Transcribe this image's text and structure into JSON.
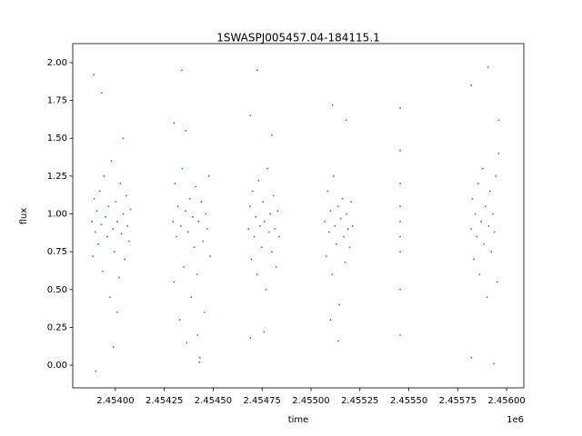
{
  "chart_data": {
    "type": "scatter",
    "title": "1SWASPJ005457.04-184115.1",
    "x_label": "time",
    "y_label": "flux",
    "x_offset_label": "1e6",
    "color": "#1f77b4",
    "xlim": [
      2453782,
      2456088
    ],
    "ylim": [
      -0.15,
      2.126
    ],
    "xticks": [
      {
        "value": 2454000,
        "label": "2.45400"
      },
      {
        "value": 2454250,
        "label": "2.45425"
      },
      {
        "value": 2454500,
        "label": "2.45450"
      },
      {
        "value": 2454750,
        "label": "2.45475"
      },
      {
        "value": 2455000,
        "label": "2.45500"
      },
      {
        "value": 2455250,
        "label": "2.45525"
      },
      {
        "value": 2455500,
        "label": "2.45550"
      },
      {
        "value": 2455750,
        "label": "2.45575"
      },
      {
        "value": 2456000,
        "label": "2.45600"
      }
    ],
    "yticks": [
      {
        "value": 0,
        "label": "0.00"
      },
      {
        "value": 0.25,
        "label": "0.25"
      },
      {
        "value": 0.5,
        "label": "0.50"
      },
      {
        "value": 0.75,
        "label": "0.75"
      },
      {
        "value": 1,
        "label": "1.00"
      },
      {
        "value": 1.25,
        "label": "1.25"
      },
      {
        "value": 1.5,
        "label": "1.50"
      },
      {
        "value": 1.75,
        "label": "1.75"
      },
      {
        "value": 2,
        "label": "2.00"
      }
    ],
    "x": [
      2453880,
      2453885,
      2453892,
      2453898,
      2453905,
      2453912,
      2453920,
      2453928,
      2453935,
      2453942,
      2453950,
      2453958,
      2453965,
      2453972,
      2453980,
      2453988,
      2453995,
      2454002,
      2454010,
      2454018,
      2454025,
      2454032,
      2454040,
      2454048,
      2454055,
      2454062,
      2454070,
      2454078,
      2453890,
      2453900,
      2453990,
      2454040,
      2454010,
      2453930,
      2454295,
      2454300,
      2454305,
      2454312,
      2454320,
      2454328,
      2454335,
      2454342,
      2454350,
      2454358,
      2454365,
      2454372,
      2454380,
      2454388,
      2454395,
      2454402,
      2454410,
      2454418,
      2454425,
      2454432,
      2454440,
      2454448,
      2454455,
      2454462,
      2454470,
      2454478,
      2454485,
      2454340,
      2454300,
      2454430,
      2454360,
      2454420,
      2454680,
      2454688,
      2454695,
      2454702,
      2454710,
      2454718,
      2454725,
      2454732,
      2454740,
      2454748,
      2454755,
      2454762,
      2454770,
      2454778,
      2454785,
      2454792,
      2454800,
      2454808,
      2454815,
      2454822,
      2454830,
      2454838,
      2454690,
      2454725,
      2454760,
      2454800,
      2454690,
      2455070,
      2455078,
      2455085,
      2455092,
      2455100,
      2455108,
      2455115,
      2455122,
      2455130,
      2455138,
      2455145,
      2455152,
      2455160,
      2455168,
      2455175,
      2455182,
      2455190,
      2455198,
      2455205,
      2455212,
      2455110,
      2455140,
      2455180,
      2455100,
      2455456,
      2455456,
      2455456,
      2455456,
      2455456,
      2455456,
      2455456,
      2455456,
      2455456,
      2455818,
      2455825,
      2455832,
      2455840,
      2455848,
      2455855,
      2455862,
      2455870,
      2455878,
      2455885,
      2455892,
      2455900,
      2455908,
      2455915,
      2455922,
      2455930,
      2455938,
      2455945,
      2455952,
      2455960,
      2455820,
      2455820,
      2455905,
      2455935,
      2455960
    ],
    "values": [
      0.95,
      0.72,
      1.1,
      0.88,
      1.02,
      0.8,
      1.15,
      0.93,
      0.62,
      1.25,
      0.98,
      0.85,
      1.05,
      0.45,
      1.35,
      0.9,
      0.75,
      1.08,
      0.95,
      0.58,
      1.2,
      0.87,
      1.0,
      0.7,
      1.12,
      0.92,
      0.82,
      1.03,
      1.92,
      -0.04,
      0.12,
      1.5,
      0.35,
      1.8,
      0.95,
      0.55,
      1.2,
      0.85,
      1.05,
      0.3,
      0.92,
      1.3,
      0.65,
      1.02,
      0.15,
      0.88,
      1.1,
      0.45,
      0.98,
      0.78,
      1.18,
      0.6,
      0.95,
      0.05,
      1.08,
      0.82,
      0.35,
      1.0,
      0.9,
      1.25,
      0.72,
      1.95,
      1.6,
      0.02,
      1.55,
      0.2,
      0.9,
      1.05,
      0.7,
      1.15,
      0.85,
      0.98,
      0.6,
      1.22,
      0.92,
      0.78,
      1.08,
      0.95,
      0.5,
      1.3,
      0.88,
      1.0,
      0.75,
      1.12,
      0.9,
      0.65,
      1.02,
      0.85,
      0.18,
      1.95,
      0.22,
      1.52,
      1.65,
      0.95,
      0.72,
      1.15,
      0.88,
      1.02,
      0.6,
      1.25,
      0.92,
      0.8,
      1.05,
      0.4,
      0.97,
      1.1,
      0.85,
      0.68,
      1.0,
      0.9,
      0.78,
      1.08,
      0.92,
      1.72,
      0.16,
      1.62,
      0.3,
      1.7,
      1.42,
      1.2,
      0.95,
      0.75,
      0.5,
      0.2,
      1.05,
      0.85,
      0.9,
      1.1,
      0.7,
      1.0,
      0.85,
      1.2,
      0.6,
      0.95,
      1.3,
      0.8,
      1.05,
      0.45,
      0.92,
      1.15,
      0.75,
      1.0,
      0.88,
      1.25,
      0.55,
      1.4,
      0.05,
      1.85,
      1.97,
      0.01,
      1.62
    ]
  }
}
